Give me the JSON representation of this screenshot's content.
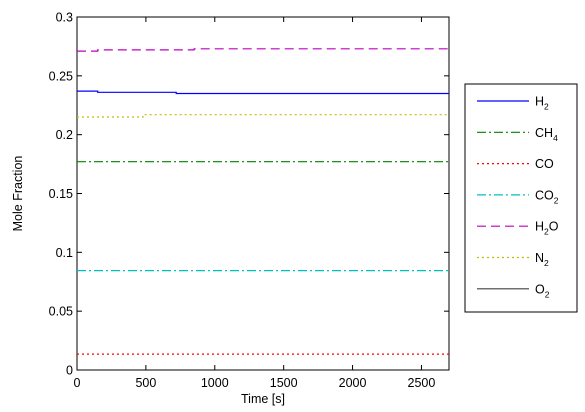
{
  "chart_data": {
    "type": "line",
    "title": "",
    "xlabel": "Time [s]",
    "ylabel": "Mole Fraction",
    "xlim": [
      0,
      2700
    ],
    "ylim": [
      0,
      0.3
    ],
    "x_ticks": [
      "0",
      "500",
      "1000",
      "1500",
      "2000",
      "2500"
    ],
    "y_ticks": [
      "0",
      "0.05",
      "0.1",
      "0.15",
      "0.2",
      "0.25",
      "0.3"
    ],
    "grid": false,
    "legend_position": "right, outside plot",
    "series": [
      {
        "name": "H2",
        "label_main": "H",
        "label_sub": "2",
        "color": "#0000ff",
        "dash": "solid",
        "x": [
          0,
          150,
          150,
          720,
          720,
          2700
        ],
        "y": [
          0.237,
          0.237,
          0.236,
          0.236,
          0.235,
          0.235
        ]
      },
      {
        "name": "CH4",
        "label_main": "CH",
        "label_sub": "4",
        "color": "#008000",
        "dash": "dashdot",
        "x": [
          0,
          2700
        ],
        "y": [
          0.177,
          0.177
        ]
      },
      {
        "name": "CO",
        "label_main": "CO",
        "label_sub": "",
        "color": "#ff0000",
        "dash": "dotted",
        "x": [
          0,
          2700
        ],
        "y": [
          0.0135,
          0.0135
        ]
      },
      {
        "name": "CO2",
        "label_main": "CO",
        "label_sub": "2",
        "color": "#00bfbf",
        "dash": "dashdot",
        "x": [
          0,
          2700
        ],
        "y": [
          0.0845,
          0.0845
        ]
      },
      {
        "name": "H2O",
        "label_main": "H",
        "label_sub": "2",
        "label_tail": "O",
        "color": "#bf00bf",
        "dash": "dashed",
        "x": [
          0,
          150,
          150,
          850,
          850,
          2700
        ],
        "y": [
          0.271,
          0.271,
          0.272,
          0.272,
          0.273,
          0.273
        ]
      },
      {
        "name": "N2",
        "label_main": "N",
        "label_sub": "2",
        "color": "#bfbf00",
        "dash": "dotted",
        "x": [
          0,
          480,
          480,
          2700
        ],
        "y": [
          0.215,
          0.215,
          0.217,
          0.217
        ]
      },
      {
        "name": "O2",
        "label_main": "O",
        "label_sub": "2",
        "color": "#404040",
        "dash": "solid",
        "x": [],
        "y": []
      }
    ]
  }
}
